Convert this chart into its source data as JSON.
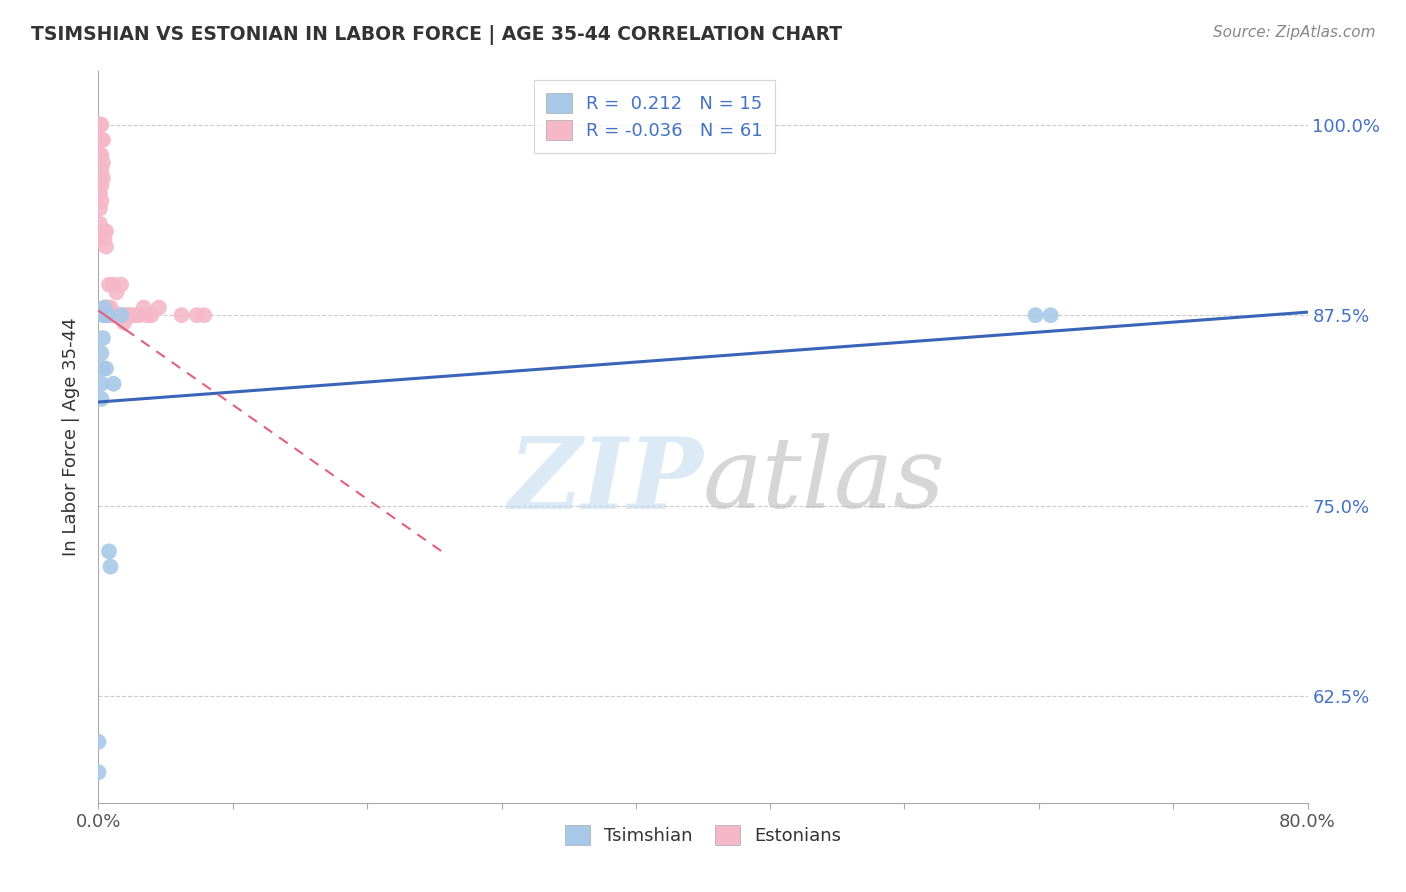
{
  "title": "TSIMSHIAN VS ESTONIAN IN LABOR FORCE | AGE 35-44 CORRELATION CHART",
  "source": "Source: ZipAtlas.com",
  "ylabel": "In Labor Force | Age 35-44",
  "xlim": [
    0.0,
    0.8
  ],
  "ylim": [
    0.555,
    1.035
  ],
  "xtick_positions": [
    0.0,
    0.089,
    0.178,
    0.267,
    0.356,
    0.444,
    0.533,
    0.622,
    0.711,
    0.8
  ],
  "xticklabels": [
    "0.0%",
    "",
    "",
    "",
    "",
    "",
    "",
    "",
    "",
    "80.0%"
  ],
  "ytick_values": [
    0.625,
    0.75,
    0.875,
    1.0
  ],
  "yticklabels_right": [
    "62.5%",
    "75.0%",
    "87.5%",
    "100.0%"
  ],
  "blue_color": "#A8C8E8",
  "pink_color": "#F5B8C8",
  "blue_line_color": "#3A64B8",
  "pink_line_color": "#E06080",
  "blue_line_x0": 0.0,
  "blue_line_y0": 0.818,
  "blue_line_x1": 0.8,
  "blue_line_y1": 0.877,
  "pink_line_x0": 0.0,
  "pink_line_y0": 0.878,
  "pink_line_x1": 0.23,
  "pink_line_y1": 0.718,
  "tsimshian_x": [
    0.0,
    0.0,
    0.002,
    0.002,
    0.002,
    0.003,
    0.003,
    0.003,
    0.004,
    0.005,
    0.005,
    0.006,
    0.007,
    0.008,
    0.01,
    0.015,
    0.62,
    0.63
  ],
  "tsimshian_y": [
    0.575,
    0.595,
    0.82,
    0.83,
    0.85,
    0.84,
    0.86,
    0.875,
    0.88,
    0.84,
    0.875,
    0.875,
    0.72,
    0.71,
    0.83,
    0.875,
    0.875,
    0.875
  ],
  "estonian_x": [
    0.0,
    0.0,
    0.0,
    0.0,
    0.0,
    0.0,
    0.0,
    0.0,
    0.0,
    0.001,
    0.001,
    0.001,
    0.001,
    0.001,
    0.001,
    0.001,
    0.001,
    0.001,
    0.002,
    0.002,
    0.002,
    0.002,
    0.002,
    0.002,
    0.003,
    0.003,
    0.003,
    0.003,
    0.004,
    0.004,
    0.004,
    0.005,
    0.005,
    0.005,
    0.006,
    0.006,
    0.007,
    0.007,
    0.008,
    0.009,
    0.01,
    0.01,
    0.011,
    0.012,
    0.013,
    0.014,
    0.015,
    0.016,
    0.017,
    0.019,
    0.02,
    0.022,
    0.025,
    0.027,
    0.03,
    0.032,
    0.035,
    0.04,
    0.055,
    0.065,
    0.07
  ],
  "estonian_y": [
    1.0,
    1.0,
    1.0,
    1.0,
    1.0,
    1.0,
    0.97,
    0.965,
    0.96,
    1.0,
    1.0,
    1.0,
    0.98,
    0.965,
    0.955,
    0.945,
    0.935,
    0.925,
    1.0,
    0.99,
    0.98,
    0.97,
    0.96,
    0.95,
    0.99,
    0.975,
    0.965,
    0.93,
    0.93,
    0.925,
    0.875,
    0.93,
    0.92,
    0.88,
    0.88,
    0.875,
    0.895,
    0.875,
    0.88,
    0.875,
    0.895,
    0.875,
    0.875,
    0.89,
    0.875,
    0.875,
    0.895,
    0.875,
    0.87,
    0.875,
    0.875,
    0.875,
    0.875,
    0.875,
    0.88,
    0.875,
    0.875,
    0.88,
    0.875,
    0.875,
    0.875
  ]
}
